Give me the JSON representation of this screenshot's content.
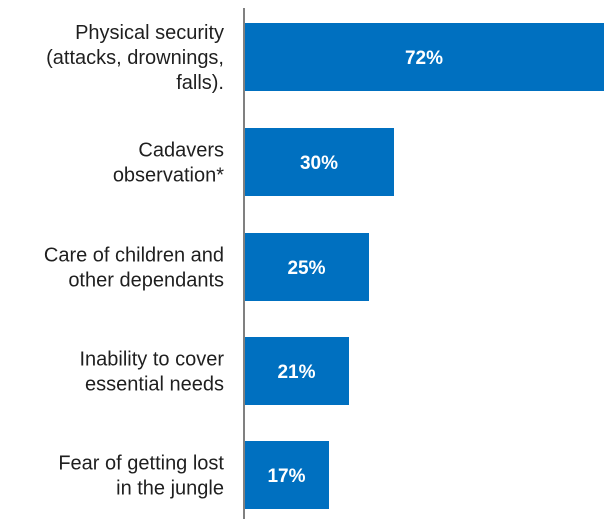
{
  "chart_data": {
    "type": "bar",
    "orientation": "horizontal",
    "categories": [
      [
        "Physical security",
        "(attacks, drownings,",
        "falls)."
      ],
      [
        "Cadavers",
        "observation*"
      ],
      [
        "Care of children and",
        "other dependants"
      ],
      [
        "Inability to cover",
        "essential needs"
      ],
      [
        "Fear of getting lost",
        "in the jungle"
      ]
    ],
    "values": [
      72,
      30,
      25,
      21,
      17
    ],
    "value_labels": [
      "72%",
      "30%",
      "25%",
      "21%",
      "17%"
    ],
    "unit": "%",
    "title": "",
    "xlabel": "",
    "ylabel": "",
    "xlim": [
      0,
      72
    ],
    "grid": false,
    "legend": "none",
    "bar_color": "#0070c0",
    "axis_color": "#000000",
    "value_label_color": "#ffffff"
  }
}
